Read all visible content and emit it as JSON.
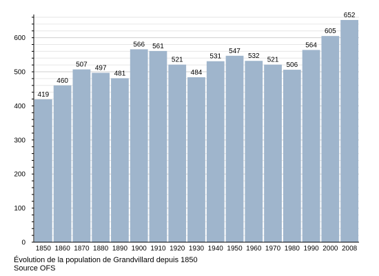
{
  "chart_data": {
    "type": "bar",
    "categories": [
      "1850",
      "1860",
      "1870",
      "1880",
      "1890",
      "1900",
      "1910",
      "1920",
      "1930",
      "1940",
      "1950",
      "1960",
      "1970",
      "1980",
      "1990",
      "2000",
      "2008"
    ],
    "values": [
      419,
      460,
      507,
      497,
      481,
      566,
      561,
      521,
      484,
      531,
      547,
      532,
      521,
      506,
      564,
      605,
      652
    ],
    "yticks": [
      0,
      100,
      200,
      300,
      400,
      500,
      600
    ],
    "ylim": [
      0,
      660
    ],
    "grid": true,
    "bar_color": "#9fb5cc",
    "title": "",
    "xlabel": "",
    "ylabel": ""
  },
  "caption": {
    "line1": "Évolution de la population de Grandvillard depuis 1850",
    "line2": "Source OFS"
  }
}
